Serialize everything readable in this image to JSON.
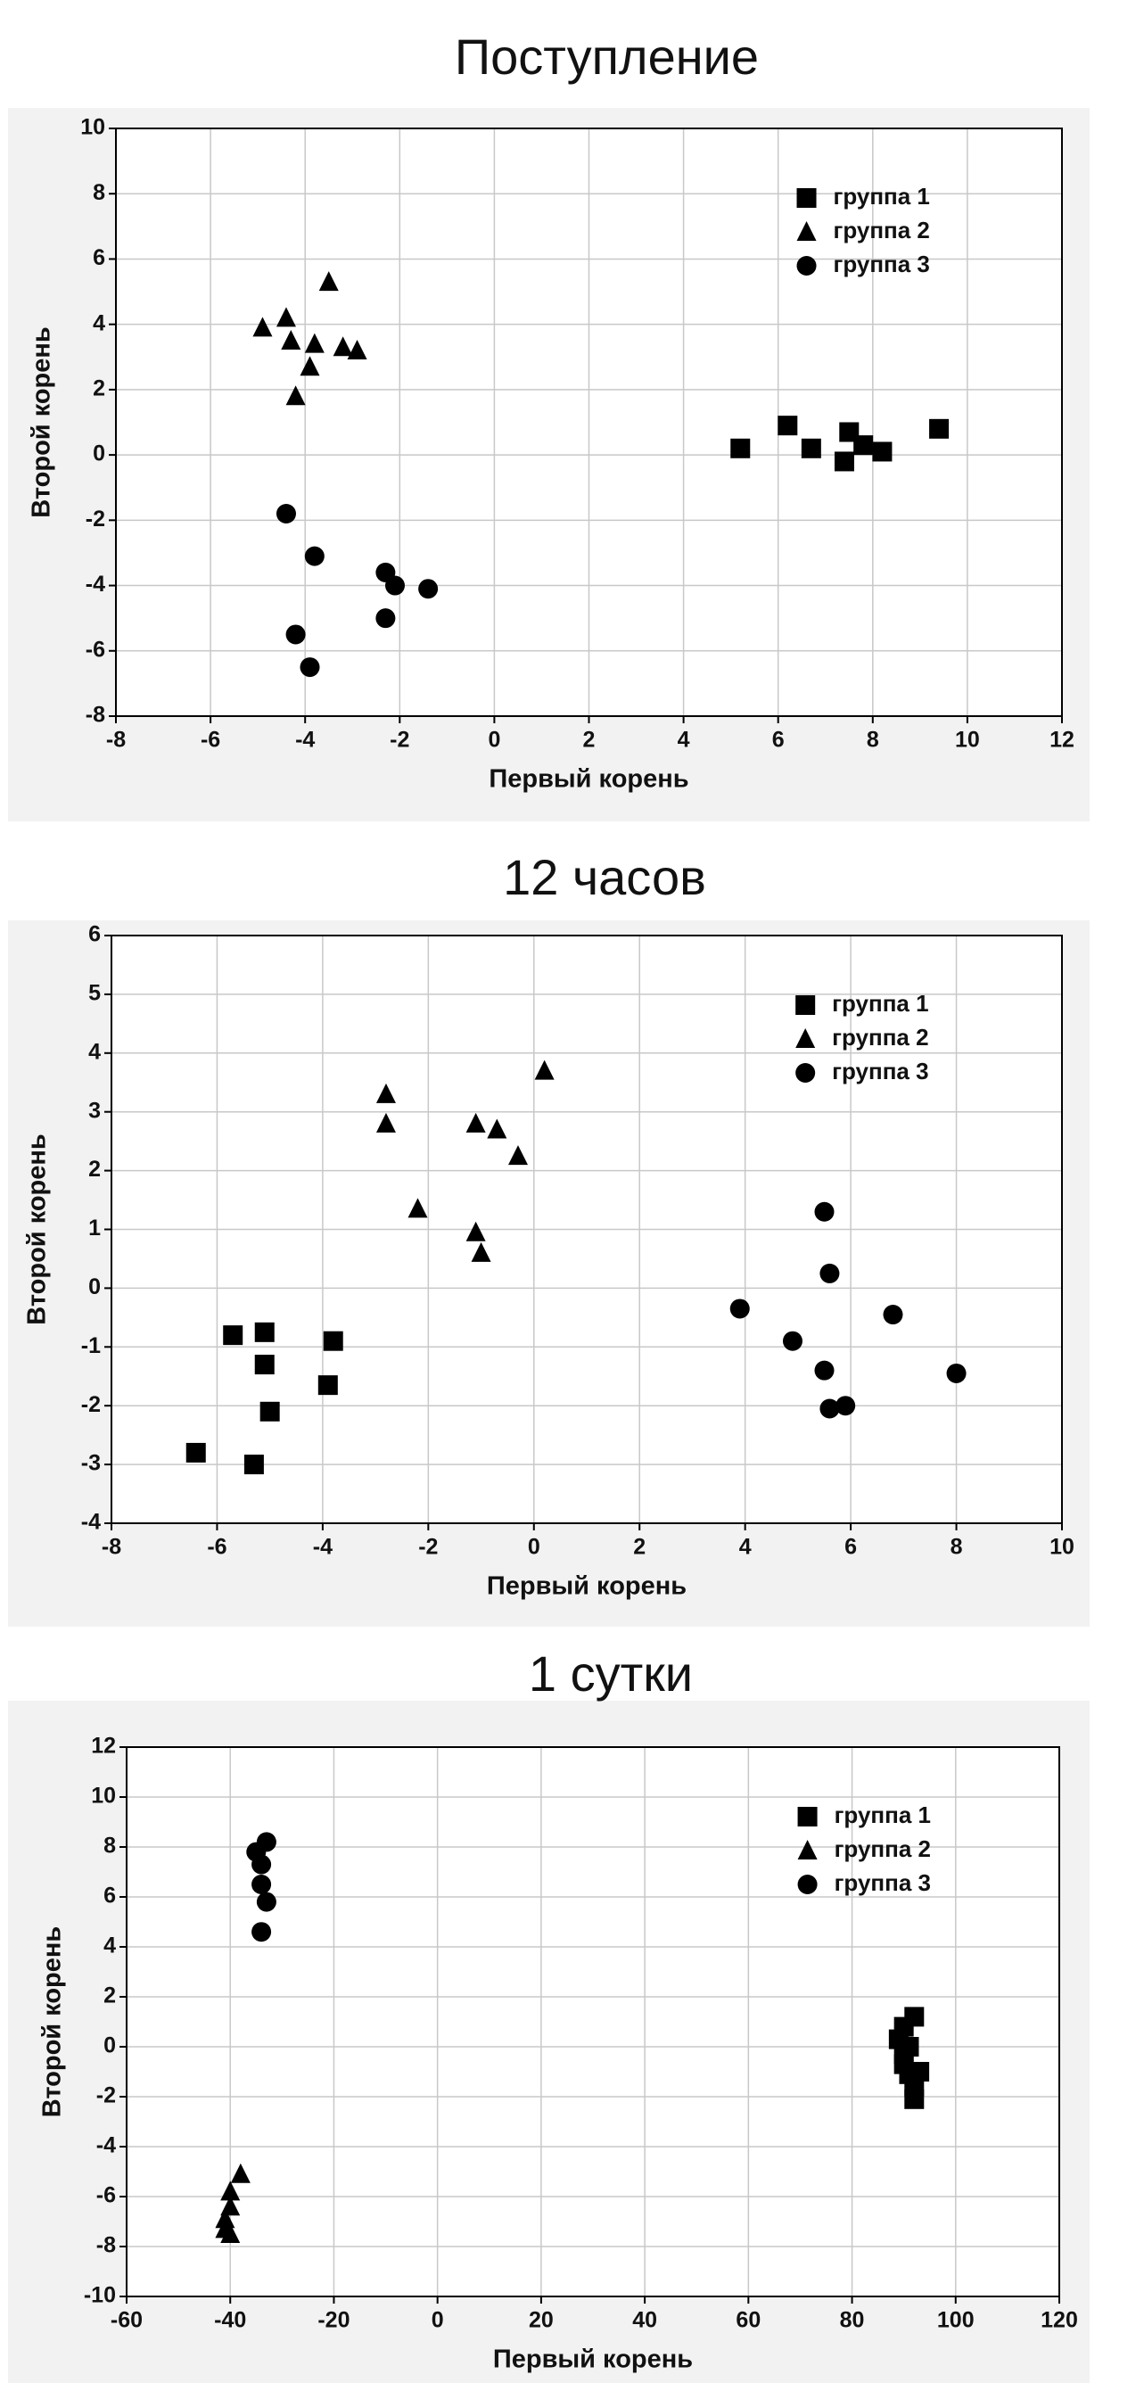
{
  "chart_data": [
    {
      "type": "scatter",
      "title": "Поступление",
      "x_label": "Первый корень",
      "y_label": "Второй корень",
      "xlim": [
        -8,
        12
      ],
      "ylim": [
        -8,
        10
      ],
      "xticks": [
        -8,
        -6,
        -4,
        -2,
        0,
        2,
        4,
        6,
        8,
        10,
        12
      ],
      "yticks": [
        -8,
        -6,
        -4,
        -2,
        0,
        2,
        4,
        6,
        8,
        10
      ],
      "grid": true,
      "legend": "upper right",
      "series": [
        {
          "name": "группа 1",
          "marker": "square",
          "color": "#000000",
          "x": [
            5.2,
            6.2,
            6.7,
            7.4,
            7.5,
            7.8,
            8.2,
            9.4
          ],
          "values": [
            0.2,
            0.9,
            0.2,
            -0.2,
            0.7,
            0.3,
            0.1,
            0.8
          ]
        },
        {
          "name": "группа 2",
          "marker": "triangle",
          "color": "#000000",
          "x": [
            -4.9,
            -4.4,
            -4.3,
            -4.2,
            -3.9,
            -3.8,
            -3.5,
            -3.2,
            -2.9
          ],
          "values": [
            3.9,
            4.2,
            3.5,
            1.8,
            2.7,
            3.4,
            5.3,
            3.3,
            3.2
          ]
        },
        {
          "name": "группа 3",
          "marker": "circle",
          "color": "#000000",
          "x": [
            -4.4,
            -3.8,
            -4.2,
            -3.9,
            -2.3,
            -2.3,
            -2.1,
            -1.4
          ],
          "values": [
            -1.8,
            -3.1,
            -5.5,
            -6.5,
            -3.6,
            -5.0,
            -4.0,
            -4.1
          ]
        }
      ]
    },
    {
      "type": "scatter",
      "title": "12 часов",
      "x_label": "Первый корень",
      "y_label": "Второй корень",
      "xlim": [
        -8,
        10
      ],
      "ylim": [
        -4,
        6
      ],
      "xticks": [
        -8,
        -6,
        -4,
        -2,
        0,
        2,
        4,
        6,
        8,
        10
      ],
      "yticks": [
        -4,
        -3,
        -2,
        -1,
        0,
        1,
        2,
        3,
        4,
        5,
        6
      ],
      "grid": true,
      "legend": "upper right",
      "series": [
        {
          "name": "группа 1",
          "marker": "square",
          "color": "#000000",
          "x": [
            -6.4,
            -5.7,
            -5.3,
            -5.1,
            -5.1,
            -5.0,
            -3.9,
            -3.8
          ],
          "values": [
            -2.8,
            -0.8,
            -3.0,
            -0.75,
            -1.3,
            -2.1,
            -1.65,
            -0.9
          ]
        },
        {
          "name": "группа 2",
          "marker": "triangle",
          "color": "#000000",
          "x": [
            -2.8,
            -2.8,
            -2.2,
            -1.1,
            -1.1,
            -1.0,
            -0.7,
            -0.3,
            0.2
          ],
          "values": [
            3.3,
            2.8,
            1.35,
            2.8,
            0.95,
            0.6,
            2.7,
            2.25,
            3.7
          ]
        },
        {
          "name": "группа 3",
          "marker": "circle",
          "color": "#000000",
          "x": [
            3.9,
            4.9,
            5.5,
            5.6,
            5.5,
            5.6,
            5.9,
            6.8,
            8.0
          ],
          "values": [
            -0.35,
            -0.9,
            1.3,
            0.25,
            -1.4,
            -2.05,
            -2.0,
            -0.45,
            -1.45
          ]
        }
      ]
    },
    {
      "type": "scatter",
      "title": "1 сутки",
      "x_label": "Первый корень",
      "y_label": "Второй корень",
      "xlim": [
        -60,
        120
      ],
      "ylim": [
        -10,
        12
      ],
      "xticks": [
        -60,
        -40,
        -20,
        0,
        20,
        40,
        60,
        80,
        100,
        120
      ],
      "yticks": [
        -10,
        -8,
        -6,
        -4,
        -2,
        0,
        2,
        4,
        6,
        8,
        10,
        12
      ],
      "grid": true,
      "legend": "upper right",
      "series": [
        {
          "name": "группа 1",
          "marker": "square",
          "color": "#000000",
          "x": [
            89,
            90,
            91,
            90,
            92,
            91,
            93,
            92,
            92,
            90
          ],
          "values": [
            0.3,
            0.8,
            0,
            -0.7,
            1.2,
            -1.1,
            -1.0,
            -1.6,
            -2.1,
            -0.3
          ]
        },
        {
          "name": "группа 2",
          "marker": "triangle",
          "color": "#000000",
          "x": [
            -38,
            -40,
            -40,
            -41,
            -41,
            -40
          ],
          "values": [
            -5.1,
            -5.8,
            -6.4,
            -6.9,
            -7.3,
            -7.5
          ]
        },
        {
          "name": "группа 3",
          "marker": "circle",
          "color": "#000000",
          "x": [
            -35,
            -33,
            -34,
            -34,
            -33,
            -34
          ],
          "values": [
            7.8,
            8.2,
            7.3,
            6.5,
            5.8,
            4.6
          ]
        }
      ]
    }
  ]
}
